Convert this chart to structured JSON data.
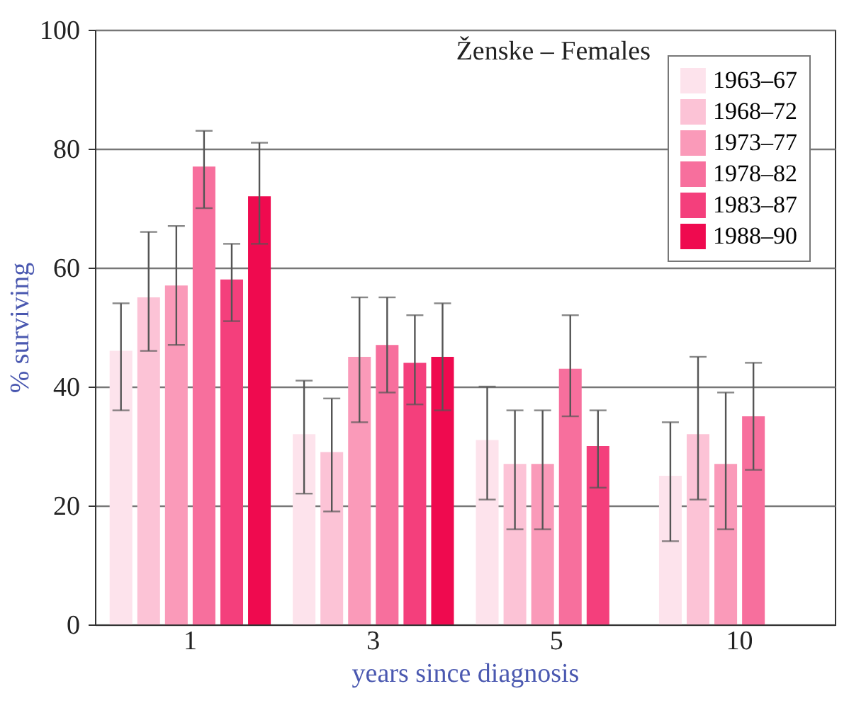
{
  "chart_data": {
    "type": "bar",
    "title": "Ženske – Females",
    "xlabel": "years since diagnosis",
    "ylabel": "% surviving",
    "categories": [
      "1",
      "3",
      "5",
      "10"
    ],
    "series": [
      {
        "name": "1963–67",
        "color": "#fde3ec",
        "values": [
          46,
          32,
          31,
          25
        ],
        "errors": [
          [
            36,
            54
          ],
          [
            22,
            41
          ],
          [
            21,
            40
          ],
          [
            14,
            34
          ]
        ]
      },
      {
        "name": "1968–72",
        "color": "#fcc3d6",
        "values": [
          55,
          29,
          27,
          32
        ],
        "errors": [
          [
            46,
            66
          ],
          [
            19,
            38
          ],
          [
            16,
            36
          ],
          [
            21,
            45
          ]
        ]
      },
      {
        "name": "1973–77",
        "color": "#fa9ab9",
        "values": [
          57,
          45,
          27,
          27
        ],
        "errors": [
          [
            47,
            67
          ],
          [
            34,
            55
          ],
          [
            16,
            36
          ],
          [
            16,
            39
          ]
        ]
      },
      {
        "name": "1978–82",
        "color": "#f76f9d",
        "values": [
          77,
          47,
          43,
          35
        ],
        "errors": [
          [
            70,
            83
          ],
          [
            39,
            55
          ],
          [
            35,
            52
          ],
          [
            26,
            44
          ]
        ]
      },
      {
        "name": "1983–87",
        "color": "#f43f7c",
        "values": [
          58,
          44,
          30,
          null
        ],
        "errors": [
          [
            51,
            64
          ],
          [
            37,
            52
          ],
          [
            23,
            36
          ],
          null
        ]
      },
      {
        "name": "1988–90",
        "color": "#ef0a4f",
        "values": [
          72,
          45,
          null,
          null
        ],
        "errors": [
          [
            64,
            81
          ],
          [
            36,
            54
          ],
          null,
          null
        ]
      }
    ],
    "ylim": [
      0,
      100
    ],
    "yticks": [
      0,
      20,
      40,
      60,
      80,
      100
    ],
    "grid": "y",
    "legend": "top right"
  }
}
